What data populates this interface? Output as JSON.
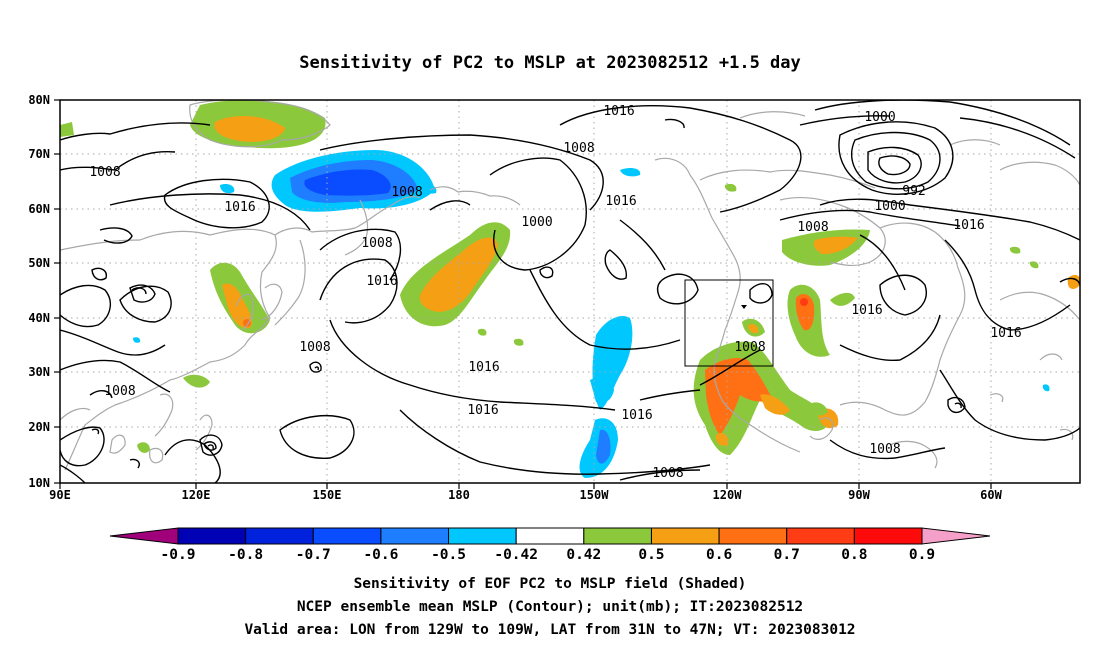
{
  "title": "Sensitivity of PC2 to MSLP at 2023082512 +1.5 day",
  "map": {
    "lat_labels": [
      "80N",
      "70N",
      "60N",
      "50N",
      "40N",
      "30N",
      "20N",
      "10N"
    ],
    "lon_labels": [
      "90E",
      "120E",
      "150E",
      "180",
      "150W",
      "120W",
      "90W",
      "60W"
    ],
    "extent": {
      "lon_range": [
        "90E",
        "50W"
      ],
      "lat_range": [
        "10N",
        "80N"
      ]
    },
    "grid": "dotted",
    "contour_unit": "mb",
    "contour_labels": [
      {
        "id": "c1016-top",
        "text": "1016"
      },
      {
        "id": "c1008-north",
        "text": "1008"
      },
      {
        "id": "c1000-ne",
        "text": "1000"
      },
      {
        "id": "c992",
        "text": "992"
      },
      {
        "id": "c1000-ne2",
        "text": "1000"
      },
      {
        "id": "c1016-ne",
        "text": "1016"
      },
      {
        "id": "c1008-westnw",
        "text": "1008"
      },
      {
        "id": "c1016-westpac",
        "text": "1016"
      },
      {
        "id": "c1008-gulf",
        "text": "1008"
      },
      {
        "id": "c1008-kamchatka",
        "text": "1008"
      },
      {
        "id": "c1000-bering",
        "text": "1000"
      },
      {
        "id": "c1016-bering",
        "text": "1016"
      },
      {
        "id": "c1016-aleut",
        "text": "1016"
      },
      {
        "id": "c1008-canada",
        "text": "1008"
      },
      {
        "id": "c1016-greatlakes",
        "text": "1016"
      },
      {
        "id": "c1016-atlantic",
        "text": "1016"
      },
      {
        "id": "c1008-japan",
        "text": "1008"
      },
      {
        "id": "c1008-scs",
        "text": "1008"
      },
      {
        "id": "c1016-centralpac",
        "text": "1016"
      },
      {
        "id": "c1016-subtrop",
        "text": "1016"
      },
      {
        "id": "c1016-eastpac",
        "text": "1016"
      },
      {
        "id": "c1008-mexico",
        "text": "1008"
      },
      {
        "id": "c1008-tropics",
        "text": "1008"
      },
      {
        "id": "c1008-carib",
        "text": "1008"
      }
    ],
    "valid_area_box": "LON 129W-109W, LAT 31N-47N"
  },
  "colorbar": {
    "labels": [
      "-0.9",
      "-0.8",
      "-0.7",
      "-0.6",
      "-0.5",
      "-0.42",
      "0.42",
      "0.5",
      "0.6",
      "0.7",
      "0.8",
      "0.9"
    ],
    "colors": [
      "#a0007a",
      "#0000b4",
      "#0022dd",
      "#0a4cff",
      "#1e7eff",
      "#00c8ff",
      "#ffffff",
      "#8cc83c",
      "#f5a014",
      "#ff7014",
      "#ff3c14",
      "#ff0a0a",
      "#f5a0c8"
    ]
  },
  "colors": {
    "coastline": "#a8a8a8",
    "contour": "#000000",
    "shade_green": "#8cc83c",
    "shade_orange": "#f5a014",
    "shade_darkorange": "#ff7014",
    "shade_red": "#ff3c14",
    "shade_cyan": "#00c8ff",
    "shade_blue": "#1e7eff",
    "shade_deepblue": "#0a4cff"
  },
  "captions": [
    "Sensitivity of EOF PC2 to MSLP field (Shaded)",
    "NCEP ensemble mean MSLP (Contour); unit(mb); IT:2023082512",
    "Valid area: LON from 129W to 109W, LAT from 31N to 47N; VT: 2023083012"
  ]
}
